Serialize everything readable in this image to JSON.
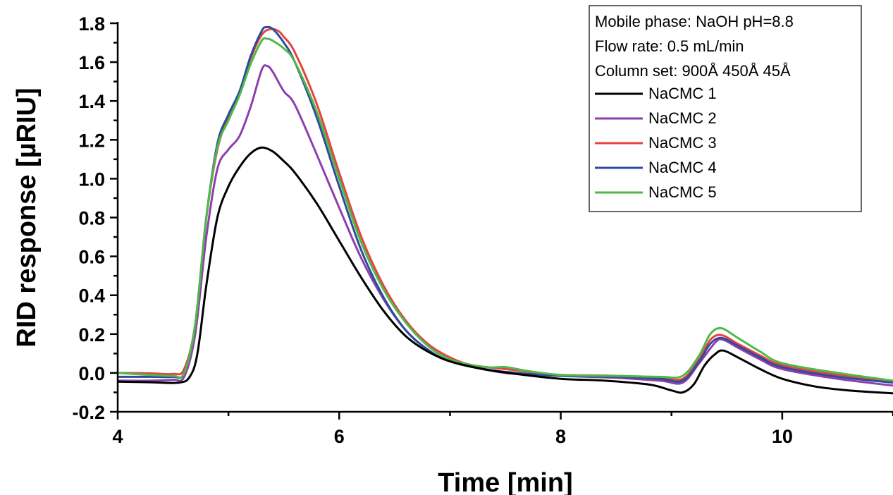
{
  "chart_data": {
    "type": "line",
    "xlabel": "Time [min]",
    "ylabel": "RID response [µRIU]",
    "xlim": [
      4,
      11
    ],
    "ylim": [
      -0.2,
      1.8
    ],
    "xticks": [
      4,
      6,
      8,
      10
    ],
    "yticks": [
      -0.2,
      0.0,
      0.2,
      0.4,
      0.6,
      0.8,
      1.0,
      1.2,
      1.4,
      1.6,
      1.8
    ],
    "ytick_labels": [
      "-0.2",
      "0.0",
      "0.2",
      "0.4",
      "0.6",
      "0.8",
      "1.0",
      "1.2",
      "1.4",
      "1.6",
      "1.8"
    ],
    "grid": false,
    "legend_position": "top-right",
    "legend_header": [
      "Mobile phase: NaOH pH=8.8",
      "Flow rate: 0.5 mL/min",
      "Column set: 900Å 450Å 45Å"
    ],
    "series": [
      {
        "name": "NaCMC 1",
        "color": "#000000",
        "points": [
          [
            4.0,
            -0.045
          ],
          [
            4.3,
            -0.048
          ],
          [
            4.55,
            -0.05
          ],
          [
            4.65,
            -0.02
          ],
          [
            4.72,
            0.1
          ],
          [
            4.8,
            0.45
          ],
          [
            4.9,
            0.8
          ],
          [
            5.0,
            0.96
          ],
          [
            5.1,
            1.06
          ],
          [
            5.2,
            1.13
          ],
          [
            5.3,
            1.16
          ],
          [
            5.4,
            1.14
          ],
          [
            5.5,
            1.09
          ],
          [
            5.6,
            1.03
          ],
          [
            5.8,
            0.87
          ],
          [
            6.0,
            0.68
          ],
          [
            6.2,
            0.49
          ],
          [
            6.4,
            0.32
          ],
          [
            6.6,
            0.19
          ],
          [
            6.8,
            0.11
          ],
          [
            7.0,
            0.06
          ],
          [
            7.3,
            0.02
          ],
          [
            7.6,
            -0.005
          ],
          [
            8.0,
            -0.03
          ],
          [
            8.4,
            -0.04
          ],
          [
            8.8,
            -0.06
          ],
          [
            9.0,
            -0.09
          ],
          [
            9.1,
            -0.1
          ],
          [
            9.2,
            -0.06
          ],
          [
            9.3,
            0.04
          ],
          [
            9.4,
            0.1
          ],
          [
            9.47,
            0.115
          ],
          [
            9.6,
            0.08
          ],
          [
            9.8,
            0.02
          ],
          [
            10.0,
            -0.03
          ],
          [
            10.3,
            -0.07
          ],
          [
            10.6,
            -0.09
          ],
          [
            11.0,
            -0.105
          ]
        ]
      },
      {
        "name": "NaCMC 2",
        "color": "#8e3fae",
        "points": [
          [
            4.0,
            -0.04
          ],
          [
            4.3,
            -0.04
          ],
          [
            4.5,
            -0.035
          ],
          [
            4.6,
            -0.02
          ],
          [
            4.7,
            0.2
          ],
          [
            4.8,
            0.7
          ],
          [
            4.9,
            1.05
          ],
          [
            5.0,
            1.15
          ],
          [
            5.1,
            1.22
          ],
          [
            5.2,
            1.37
          ],
          [
            5.3,
            1.56
          ],
          [
            5.35,
            1.58
          ],
          [
            5.4,
            1.55
          ],
          [
            5.5,
            1.45
          ],
          [
            5.6,
            1.38
          ],
          [
            5.8,
            1.12
          ],
          [
            6.0,
            0.85
          ],
          [
            6.2,
            0.59
          ],
          [
            6.4,
            0.38
          ],
          [
            6.6,
            0.22
          ],
          [
            6.8,
            0.12
          ],
          [
            7.0,
            0.06
          ],
          [
            7.5,
            0.0
          ],
          [
            8.0,
            -0.015
          ],
          [
            8.5,
            -0.025
          ],
          [
            8.9,
            -0.04
          ],
          [
            9.1,
            -0.05
          ],
          [
            9.25,
            0.05
          ],
          [
            9.4,
            0.16
          ],
          [
            9.47,
            0.17
          ],
          [
            9.6,
            0.13
          ],
          [
            9.8,
            0.07
          ],
          [
            10.0,
            0.02
          ],
          [
            10.5,
            -0.03
          ],
          [
            11.0,
            -0.065
          ]
        ]
      },
      {
        "name": "NaCMC 3",
        "color": "#e8413f",
        "points": [
          [
            4.0,
            0.0
          ],
          [
            4.3,
            -0.002
          ],
          [
            4.5,
            -0.005
          ],
          [
            4.6,
            0.02
          ],
          [
            4.7,
            0.25
          ],
          [
            4.8,
            0.8
          ],
          [
            4.9,
            1.15
          ],
          [
            5.0,
            1.32
          ],
          [
            5.1,
            1.45
          ],
          [
            5.2,
            1.62
          ],
          [
            5.3,
            1.74
          ],
          [
            5.38,
            1.77
          ],
          [
            5.45,
            1.76
          ],
          [
            5.5,
            1.73
          ],
          [
            5.6,
            1.65
          ],
          [
            5.8,
            1.38
          ],
          [
            6.0,
            1.03
          ],
          [
            6.2,
            0.7
          ],
          [
            6.4,
            0.45
          ],
          [
            6.6,
            0.27
          ],
          [
            6.8,
            0.15
          ],
          [
            7.0,
            0.08
          ],
          [
            7.2,
            0.04
          ],
          [
            7.5,
            0.02
          ],
          [
            7.8,
            0.0
          ],
          [
            8.0,
            -0.01
          ],
          [
            8.5,
            -0.015
          ],
          [
            8.9,
            -0.025
          ],
          [
            9.1,
            -0.03
          ],
          [
            9.25,
            0.07
          ],
          [
            9.35,
            0.17
          ],
          [
            9.45,
            0.195
          ],
          [
            9.6,
            0.15
          ],
          [
            9.8,
            0.09
          ],
          [
            10.0,
            0.04
          ],
          [
            10.5,
            -0.01
          ],
          [
            11.0,
            -0.04
          ]
        ]
      },
      {
        "name": "NaCMC 4",
        "color": "#2e4c9c",
        "points": [
          [
            4.0,
            -0.02
          ],
          [
            4.3,
            -0.02
          ],
          [
            4.5,
            -0.02
          ],
          [
            4.6,
            0.0
          ],
          [
            4.7,
            0.25
          ],
          [
            4.8,
            0.8
          ],
          [
            4.9,
            1.18
          ],
          [
            5.0,
            1.33
          ],
          [
            5.1,
            1.45
          ],
          [
            5.2,
            1.63
          ],
          [
            5.3,
            1.76
          ],
          [
            5.34,
            1.78
          ],
          [
            5.4,
            1.77
          ],
          [
            5.5,
            1.7
          ],
          [
            5.6,
            1.6
          ],
          [
            5.8,
            1.31
          ],
          [
            6.0,
            0.96
          ],
          [
            6.2,
            0.63
          ],
          [
            6.4,
            0.39
          ],
          [
            6.6,
            0.22
          ],
          [
            6.8,
            0.12
          ],
          [
            7.0,
            0.06
          ],
          [
            7.3,
            0.02
          ],
          [
            7.6,
            0.0
          ],
          [
            8.0,
            -0.015
          ],
          [
            8.5,
            -0.02
          ],
          [
            8.9,
            -0.03
          ],
          [
            9.1,
            -0.04
          ],
          [
            9.25,
            0.06
          ],
          [
            9.35,
            0.15
          ],
          [
            9.45,
            0.18
          ],
          [
            9.6,
            0.14
          ],
          [
            9.8,
            0.08
          ],
          [
            10.0,
            0.03
          ],
          [
            10.5,
            -0.02
          ],
          [
            11.0,
            -0.05
          ]
        ]
      },
      {
        "name": "NaCMC 5",
        "color": "#4fb848",
        "points": [
          [
            4.0,
            0.0
          ],
          [
            4.3,
            -0.01
          ],
          [
            4.5,
            -0.015
          ],
          [
            4.6,
            0.0
          ],
          [
            4.7,
            0.25
          ],
          [
            4.8,
            0.8
          ],
          [
            4.9,
            1.16
          ],
          [
            5.0,
            1.3
          ],
          [
            5.1,
            1.43
          ],
          [
            5.2,
            1.59
          ],
          [
            5.3,
            1.71
          ],
          [
            5.35,
            1.72
          ],
          [
            5.4,
            1.71
          ],
          [
            5.5,
            1.67
          ],
          [
            5.6,
            1.6
          ],
          [
            5.8,
            1.34
          ],
          [
            6.0,
            1.0
          ],
          [
            6.2,
            0.67
          ],
          [
            6.4,
            0.43
          ],
          [
            6.6,
            0.26
          ],
          [
            6.8,
            0.14
          ],
          [
            7.0,
            0.07
          ],
          [
            7.3,
            0.03
          ],
          [
            7.5,
            0.03
          ],
          [
            7.7,
            0.01
          ],
          [
            8.0,
            -0.01
          ],
          [
            8.5,
            -0.015
          ],
          [
            8.9,
            -0.02
          ],
          [
            9.1,
            -0.015
          ],
          [
            9.25,
            0.09
          ],
          [
            9.35,
            0.2
          ],
          [
            9.45,
            0.23
          ],
          [
            9.6,
            0.18
          ],
          [
            9.8,
            0.11
          ],
          [
            10.0,
            0.05
          ],
          [
            10.5,
            0.0
          ],
          [
            11.0,
            -0.04
          ]
        ]
      }
    ]
  }
}
